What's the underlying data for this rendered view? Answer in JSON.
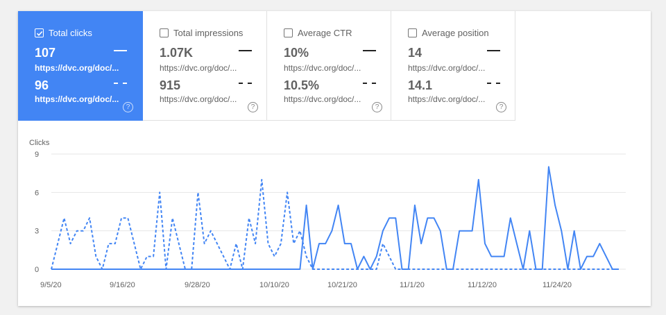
{
  "metrics": [
    {
      "label": "Total clicks",
      "checked": true,
      "v1": "107",
      "u1": "https://dvc.org/doc/...",
      "v2": "96",
      "u2": "https://dvc.org/doc/...",
      "help": "?"
    },
    {
      "label": "Total impressions",
      "checked": false,
      "v1": "1.07K",
      "u1": "https://dvc.org/doc/...",
      "v2": "915",
      "u2": "https://dvc.org/doc/...",
      "help": "?"
    },
    {
      "label": "Average CTR",
      "checked": false,
      "v1": "10%",
      "u1": "https://dvc.org/doc/...",
      "v2": "10.5%",
      "u2": "https://dvc.org/doc/...",
      "help": "?"
    },
    {
      "label": "Average position",
      "checked": false,
      "v1": "14",
      "u1": "https://dvc.org/doc/...",
      "v2": "14.1",
      "u2": "https://dvc.org/doc/...",
      "help": "?"
    }
  ],
  "colors": {
    "accent": "#4285f4",
    "grid": "#e6e6e6"
  },
  "chart_data": {
    "type": "line",
    "ylabel": "Clicks",
    "ylim": [
      0,
      9
    ],
    "yticks": [
      "0",
      "3",
      "6",
      "9"
    ],
    "xticks": [
      "9/5/20",
      "9/16/20",
      "9/28/20",
      "10/10/20",
      "10/21/20",
      "11/1/20",
      "11/12/20",
      "11/24/20"
    ],
    "series": [
      {
        "style": "solid",
        "values": [
          0,
          0,
          0,
          0,
          0,
          0,
          0,
          0,
          0,
          0,
          0,
          0,
          0,
          0,
          0,
          0,
          0,
          0,
          0,
          0,
          0,
          0,
          0,
          0,
          0,
          0,
          0,
          0,
          0,
          0,
          0,
          0,
          0,
          0,
          0,
          0,
          0,
          0,
          0,
          0,
          5,
          0,
          2,
          2,
          3,
          5,
          2,
          2,
          0,
          1,
          0,
          1,
          3,
          4,
          4,
          0,
          0,
          5,
          2,
          4,
          4,
          3,
          0,
          0,
          3,
          3,
          3,
          7,
          2,
          1,
          1,
          1,
          4,
          2,
          0,
          3,
          0,
          0,
          8,
          5,
          3,
          0,
          3,
          0,
          1,
          1,
          2,
          1,
          0,
          0
        ]
      },
      {
        "style": "dashed",
        "values": [
          0,
          2,
          4,
          2,
          3,
          3,
          4,
          1,
          0,
          2,
          2,
          4,
          4,
          2,
          0,
          1,
          1,
          6,
          0,
          4,
          2,
          0,
          0,
          6,
          2,
          3,
          2,
          1,
          0,
          2,
          0,
          4,
          2,
          7,
          2,
          1,
          2,
          6,
          2,
          3,
          1,
          0,
          0,
          0,
          0,
          0,
          0,
          0,
          0,
          0,
          0,
          0,
          2,
          1,
          0,
          0,
          0,
          0,
          0,
          0,
          0,
          0,
          0,
          0,
          0,
          0,
          0,
          0,
          0,
          0,
          0,
          0,
          0,
          0,
          0,
          0,
          0,
          0,
          0,
          0,
          0,
          0,
          0,
          0,
          0,
          0,
          0,
          0,
          0,
          0
        ]
      }
    ]
  }
}
